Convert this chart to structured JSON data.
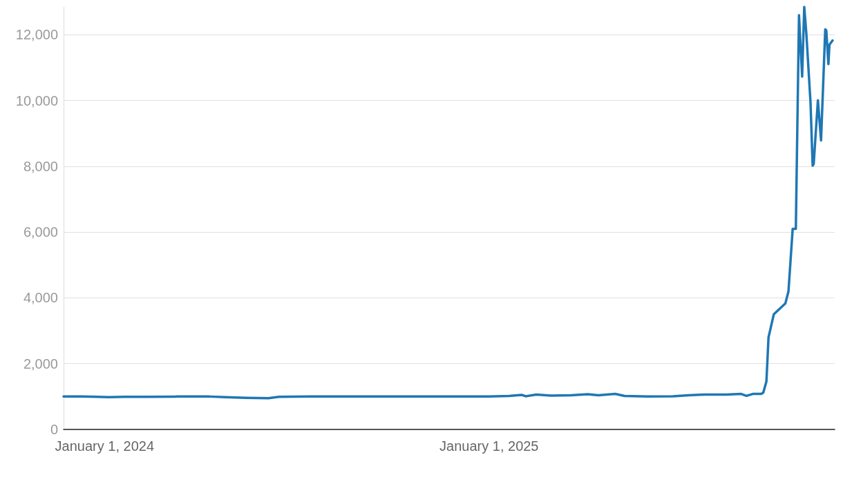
{
  "chart_data": {
    "type": "line",
    "color": "#1f77b4",
    "marker": "none",
    "grid": "y",
    "x": [
      "2023-11-23",
      "2023-12-10",
      "2023-12-25",
      "2024-01-05",
      "2024-01-20",
      "2024-02-10",
      "2024-03-10",
      "2024-04-10",
      "2024-04-25",
      "2024-05-15",
      "2024-06-05",
      "2024-06-15",
      "2024-07-15",
      "2024-09-01",
      "2024-10-15",
      "2024-12-01",
      "2025-01-01",
      "2025-01-20",
      "2025-02-01",
      "2025-02-05",
      "2025-02-15",
      "2025-03-01",
      "2025-03-20",
      "2025-04-05",
      "2025-04-15",
      "2025-05-01",
      "2025-05-10",
      "2025-06-01",
      "2025-06-25",
      "2025-07-10",
      "2025-07-25",
      "2025-08-15",
      "2025-08-29",
      "2025-09-03",
      "2025-09-09",
      "2025-09-17",
      "2025-09-19",
      "2025-09-22",
      "2025-09-24",
      "2025-09-29",
      "2025-10-10",
      "2025-10-13",
      "2025-10-17",
      "2025-10-20",
      "2025-10-23",
      "2025-10-26",
      "2025-10-28",
      "2025-10-30",
      "2025-11-03",
      "2025-11-05",
      "2025-11-06",
      "2025-11-10",
      "2025-11-13",
      "2025-11-17",
      "2025-11-18",
      "2025-11-20",
      "2025-11-21",
      "2025-11-24"
    ],
    "values": [
      1000,
      1000,
      990,
      980,
      990,
      990,
      1000,
      1000,
      980,
      960,
      950,
      990,
      1000,
      1000,
      1000,
      1000,
      1000,
      1020,
      1050,
      1010,
      1060,
      1030,
      1040,
      1070,
      1040,
      1080,
      1020,
      1000,
      1010,
      1040,
      1060,
      1060,
      1080,
      1020,
      1080,
      1080,
      1120,
      1460,
      2800,
      3500,
      3830,
      4200,
      6100,
      6100,
      12600,
      10730,
      12850,
      12040,
      9930,
      8020,
      8070,
      10010,
      8790,
      12170,
      12130,
      11110,
      11700,
      11830
    ],
    "xlim": [
      "2023-11-23",
      "2025-11-26"
    ],
    "xticks": [
      {
        "value": "2024-01-01",
        "label": "January 1, 2024"
      },
      {
        "value": "2025-01-01",
        "label": "January 1, 2025"
      }
    ],
    "ylim": [
      0,
      12850
    ],
    "yticks": [
      {
        "value": 0,
        "label": "0"
      },
      {
        "value": 2000,
        "label": "2,000"
      },
      {
        "value": 4000,
        "label": "4,000"
      },
      {
        "value": 6000,
        "label": "6,000"
      },
      {
        "value": 8000,
        "label": "8,000"
      },
      {
        "value": 10000,
        "label": "10,000"
      },
      {
        "value": 12000,
        "label": "12,000"
      }
    ]
  }
}
